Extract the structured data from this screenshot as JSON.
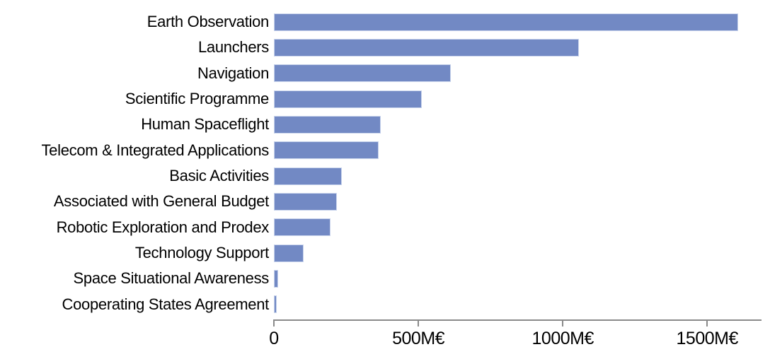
{
  "chart_data": {
    "type": "bar",
    "orientation": "horizontal",
    "title": "",
    "xlabel": "",
    "ylabel": "",
    "unit": "M€",
    "categories": [
      "Earth Observation",
      "Launchers",
      "Navigation",
      "Scientific Programme",
      "Human Spaceflight",
      "Telecom & Integrated Applications",
      "Basic Activities",
      "Associated with General Budget",
      "Robotic Exploration and Prodex",
      "Technology Support",
      "Space Situational Awareness",
      "Cooperating States Agreement"
    ],
    "values": [
      1603,
      1051,
      607,
      508,
      365,
      358,
      230,
      213,
      191,
      97,
      10,
      4
    ],
    "x_ticks": [
      {
        "label": "0",
        "value": 0
      },
      {
        "label": "500M€",
        "value": 500
      },
      {
        "label": "1000M€",
        "value": 1000
      },
      {
        "label": "1500M€",
        "value": 1500
      }
    ],
    "xlim": [
      0,
      1715
    ],
    "grid": false,
    "legend": false,
    "colors": {
      "bar_fill": "#7289c4",
      "bar_border": "#c9d4ec",
      "axis": "#8a8a8a",
      "text": "#000000",
      "background": "#ffffff"
    }
  }
}
